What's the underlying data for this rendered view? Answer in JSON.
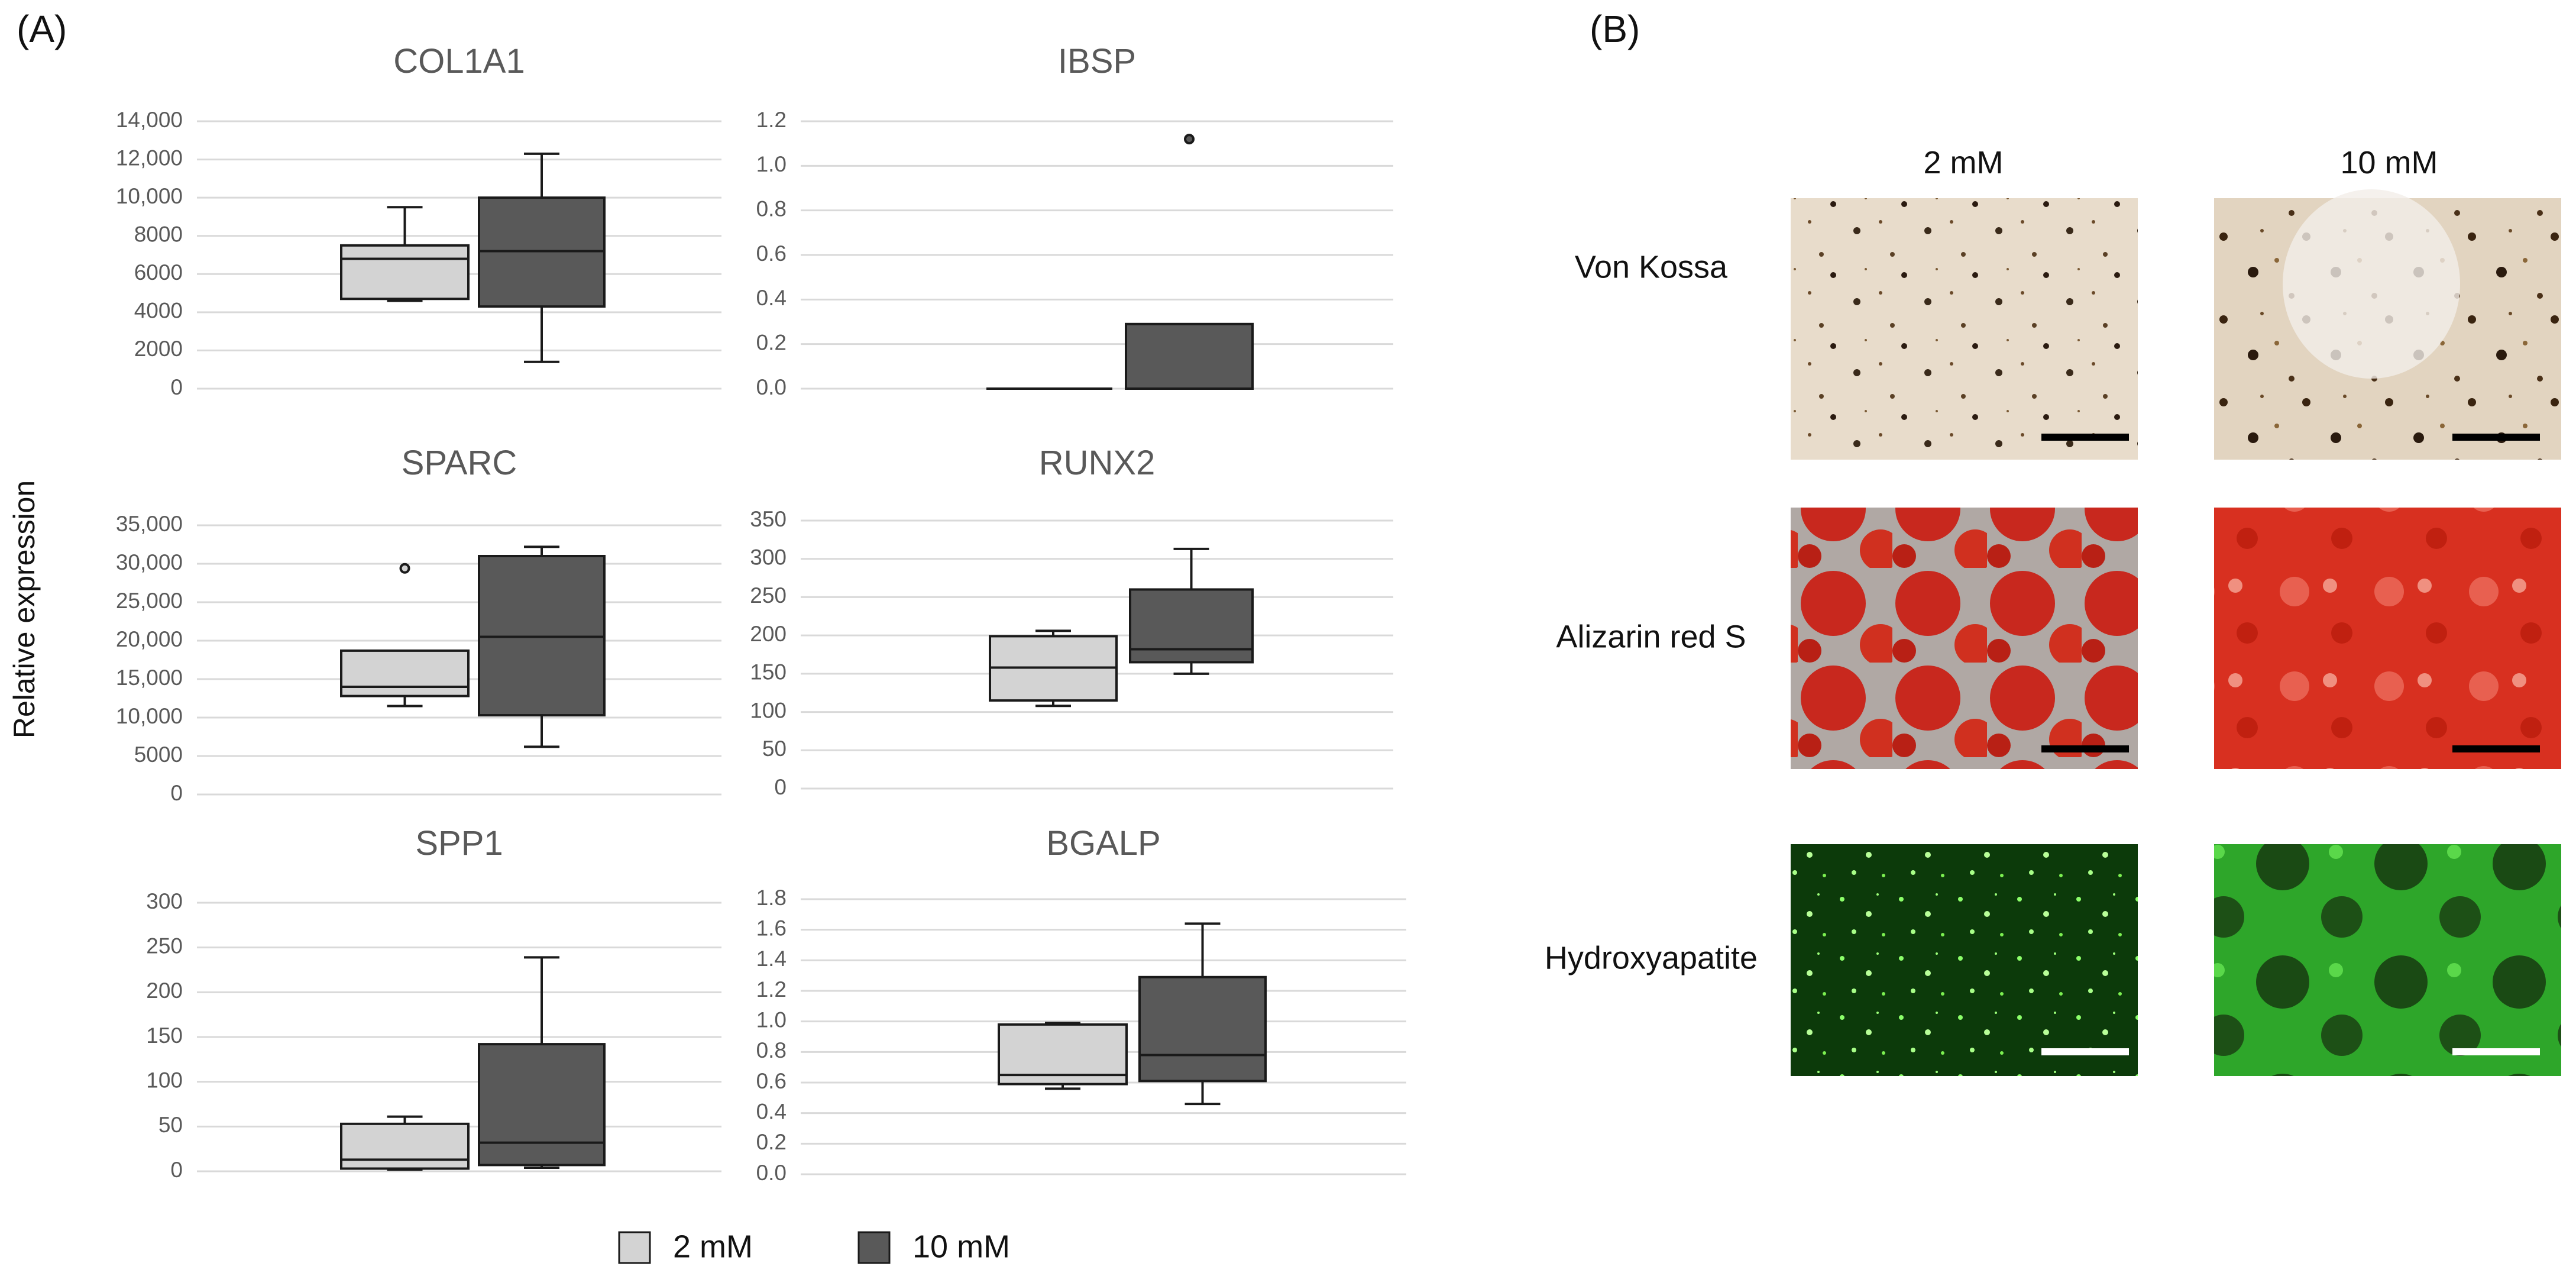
{
  "panels": {
    "a": "(A)",
    "b": "(B)"
  },
  "y_axis_label": "Relative expression",
  "legend": [
    {
      "label": "2 mM",
      "color": "#d3d3d3"
    },
    {
      "label": "10 mM",
      "color": "#595959"
    }
  ],
  "chart_data": [
    {
      "type": "box",
      "title": "COL1A1",
      "yticks": [
        "0",
        "2000",
        "4000",
        "6000",
        "8000",
        "10,000",
        "12,000",
        "14,000"
      ],
      "ylim": [
        0,
        14000
      ],
      "grid": true,
      "series": [
        {
          "name": "2 mM",
          "color": "#d3d3d3",
          "min": 4600,
          "q1": 4700,
          "median": 6800,
          "q3": 7500,
          "max": 9500,
          "outliers": []
        },
        {
          "name": "10 mM",
          "color": "#595959",
          "min": 1400,
          "q1": 4300,
          "median": 7200,
          "q3": 10000,
          "max": 12300,
          "outliers": []
        }
      ]
    },
    {
      "type": "box",
      "title": "IBSP",
      "yticks": [
        "0.0",
        "0.2",
        "0.4",
        "0.6",
        "0.8",
        "1.0",
        "1.2"
      ],
      "ylim": [
        0,
        1.2
      ],
      "grid": true,
      "series": [
        {
          "name": "2 mM",
          "color": "#d3d3d3",
          "min": 0,
          "q1": 0,
          "median": 0,
          "q3": 0,
          "max": 0,
          "outliers": []
        },
        {
          "name": "10 mM",
          "color": "#595959",
          "min": 0,
          "q1": 0,
          "median": 0,
          "q3": 0.29,
          "max": 0.29,
          "outliers": [
            1.12
          ]
        }
      ]
    },
    {
      "type": "box",
      "title": "SPARC",
      "yticks": [
        "0",
        "5000",
        "10,000",
        "15,000",
        "20,000",
        "25,000",
        "30,000",
        "35,000"
      ],
      "ylim": [
        0,
        35000
      ],
      "grid": true,
      "series": [
        {
          "name": "2 mM",
          "color": "#d3d3d3",
          "min": 11500,
          "q1": 12800,
          "median": 14000,
          "q3": 18700,
          "max": 18700,
          "outliers": [
            29400
          ]
        },
        {
          "name": "10 mM",
          "color": "#595959",
          "min": 6200,
          "q1": 10300,
          "median": 20500,
          "q3": 31000,
          "max": 32200,
          "outliers": []
        }
      ]
    },
    {
      "type": "box",
      "title": "RUNX2",
      "yticks": [
        "0",
        "50",
        "100",
        "150",
        "200",
        "250",
        "300",
        "350"
      ],
      "ylim": [
        0,
        350
      ],
      "grid": true,
      "series": [
        {
          "name": "2 mM",
          "color": "#d3d3d3",
          "min": 108,
          "q1": 115,
          "median": 158,
          "q3": 199,
          "max": 206,
          "outliers": []
        },
        {
          "name": "10 mM",
          "color": "#595959",
          "min": 150,
          "q1": 165,
          "median": 182,
          "q3": 260,
          "max": 313,
          "outliers": []
        }
      ]
    },
    {
      "type": "box",
      "title": "SPP1",
      "yticks": [
        "0",
        "50",
        "100",
        "150",
        "200",
        "250",
        "300"
      ],
      "ylim": [
        0,
        300
      ],
      "grid": true,
      "series": [
        {
          "name": "2 mM",
          "color": "#d3d3d3",
          "min": 2,
          "q1": 3,
          "median": 13,
          "q3": 53,
          "max": 61,
          "outliers": []
        },
        {
          "name": "10 mM",
          "color": "#595959",
          "min": 4,
          "q1": 7,
          "median": 32,
          "q3": 142,
          "max": 239,
          "outliers": []
        }
      ]
    },
    {
      "type": "box",
      "title": "BGALP",
      "yticks": [
        "0.0",
        "0.2",
        "0.4",
        "0.6",
        "0.8",
        "1.0",
        "1.2",
        "1.4",
        "1.6",
        "1.8"
      ],
      "ylim": [
        0,
        1.8
      ],
      "grid": true,
      "series": [
        {
          "name": "2 mM",
          "color": "#d3d3d3",
          "min": 0.56,
          "q1": 0.59,
          "median": 0.65,
          "q3": 0.98,
          "max": 0.99,
          "outliers": []
        },
        {
          "name": "10 mM",
          "color": "#595959",
          "min": 0.46,
          "q1": 0.61,
          "median": 0.78,
          "q3": 1.29,
          "max": 1.64,
          "outliers": []
        }
      ]
    }
  ],
  "micrographs": {
    "columns": [
      "2 mM",
      "10 mM"
    ],
    "rows": [
      {
        "label": "Von Kossa",
        "style": "vonkossa"
      },
      {
        "label": "Alizarin red S",
        "style": "alizarin"
      },
      {
        "label": "Hydroxyapatite",
        "style": "hydroxyapatite"
      }
    ]
  }
}
